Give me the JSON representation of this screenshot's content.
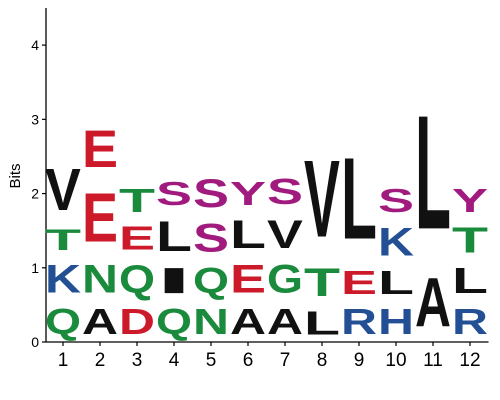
{
  "chart_data": {
    "type": "sequence-logo",
    "ylabel": "Bits",
    "ylim": [
      0,
      4.5
    ],
    "y_ticks": [
      "0",
      "1",
      "2",
      "3",
      "4"
    ],
    "positions": [
      "1",
      "2",
      "3",
      "4",
      "5",
      "6",
      "7",
      "8",
      "9",
      "10",
      "11",
      "12"
    ],
    "colors": {
      "acidic": "#cc1a2a",
      "basic": "#234f94",
      "polar": "#a11a7d",
      "neutral": "#1a8a3c",
      "hydrophobic": "#111111"
    },
    "stacks": [
      [
        {
          "letter": "Q",
          "bits": 0.55
        },
        {
          "letter": "K",
          "bits": 0.6
        },
        {
          "letter": "T",
          "bits": 0.45
        },
        {
          "letter": "V",
          "bits": 0.9
        }
      ],
      [
        {
          "letter": "A",
          "bits": 0.55
        },
        {
          "letter": "N",
          "bits": 0.6
        },
        {
          "letter": "E",
          "bits": 1.05
        },
        {
          "letter": "E",
          "bits": 0.8
        }
      ],
      [
        {
          "letter": "D",
          "bits": 0.55
        },
        {
          "letter": "Q",
          "bits": 0.6
        },
        {
          "letter": "E",
          "bits": 0.5
        },
        {
          "letter": "T",
          "bits": 0.5
        }
      ],
      [
        {
          "letter": "Q",
          "bits": 0.55
        },
        {
          "letter": "I",
          "bits": 0.55
        },
        {
          "letter": "L",
          "bits": 0.65
        },
        {
          "letter": "S",
          "bits": 0.5
        }
      ],
      [
        {
          "letter": "N",
          "bits": 0.55
        },
        {
          "letter": "Q",
          "bits": 0.55
        },
        {
          "letter": "S",
          "bits": 0.6
        },
        {
          "letter": "S",
          "bits": 0.6
        }
      ],
      [
        {
          "letter": "A",
          "bits": 0.55
        },
        {
          "letter": "E",
          "bits": 0.6
        },
        {
          "letter": "L",
          "bits": 0.6
        },
        {
          "letter": "Y",
          "bits": 0.5
        }
      ],
      [
        {
          "letter": "A",
          "bits": 0.55
        },
        {
          "letter": "G",
          "bits": 0.6
        },
        {
          "letter": "V",
          "bits": 0.6
        },
        {
          "letter": "S",
          "bits": 0.55
        }
      ],
      [
        {
          "letter": "L",
          "bits": 0.5
        },
        {
          "letter": "T",
          "bits": 0.6
        },
        {
          "letter": "V",
          "bits": 1.65
        }
      ],
      [
        {
          "letter": "R",
          "bits": 0.55
        },
        {
          "letter": "E",
          "bits": 0.5
        },
        {
          "letter": "L",
          "bits": 1.75
        }
      ],
      [
        {
          "letter": "H",
          "bits": 0.55
        },
        {
          "letter": "L",
          "bits": 0.5
        },
        {
          "letter": "K",
          "bits": 0.6
        },
        {
          "letter": "S",
          "bits": 0.5
        }
      ],
      [
        {
          "letter": "A",
          "bits": 1.05
        },
        {
          "letter": "L",
          "bits": 2.45
        }
      ],
      [
        {
          "letter": "R",
          "bits": 0.55
        },
        {
          "letter": "L",
          "bits": 0.55
        },
        {
          "letter": "T",
          "bits": 0.55
        },
        {
          "letter": "Y",
          "bits": 0.5
        }
      ]
    ]
  }
}
